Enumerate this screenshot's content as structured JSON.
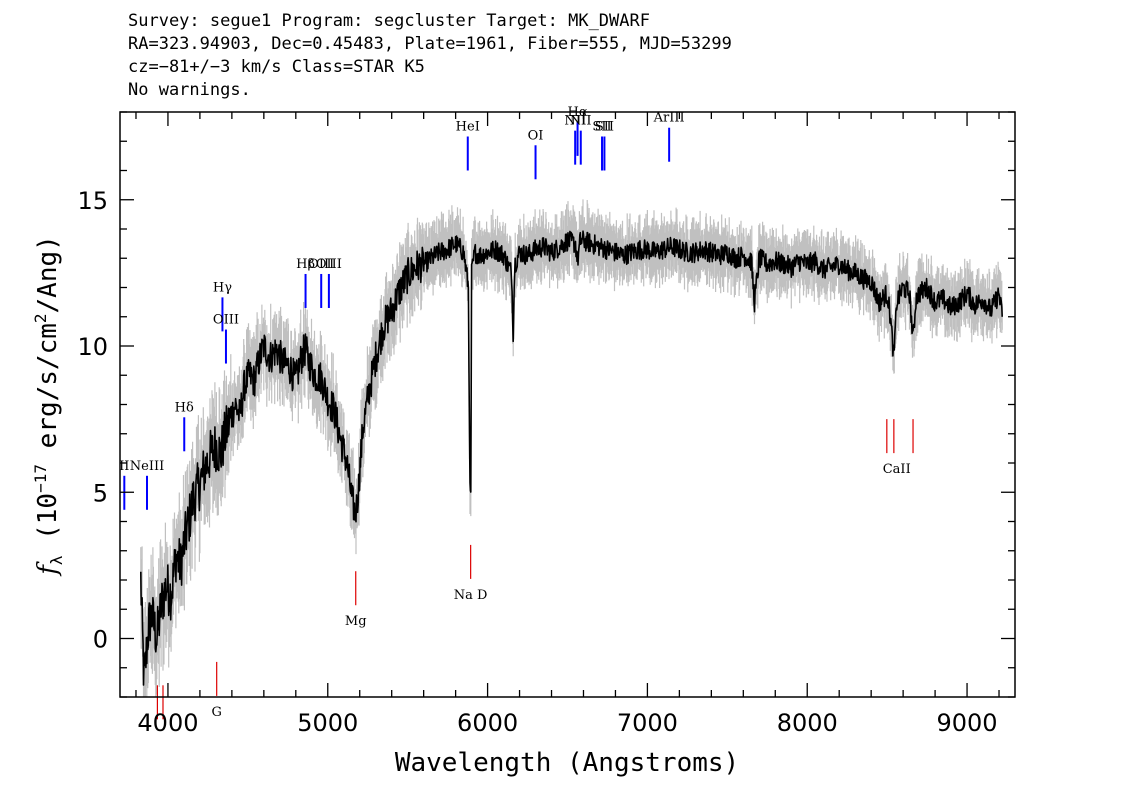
{
  "header": {
    "line1": "Survey: segue1 Program: segcluster Target: MK_DWARF",
    "line2": "RA=323.94903, Dec=0.45483, Plate=1961, Fiber=555, MJD=53299",
    "line3": "cz=−81+/−3 km/s Class=STAR K5",
    "line4": "No warnings."
  },
  "chart_data": {
    "type": "line",
    "xlabel": "Wavelength (Angstroms)",
    "ylabel": "f_λ (10^-17 erg/s/cm^2/Ang)",
    "xlim": [
      3700,
      9300
    ],
    "ylim": [
      -2,
      18
    ],
    "x_ticks": [
      4000,
      5000,
      6000,
      7000,
      8000,
      9000
    ],
    "y_ticks": [
      0,
      5,
      10,
      15
    ],
    "grid": false,
    "colors": {
      "flux": "#000000",
      "noise": "#c0c0c0",
      "emission": "#0000ff",
      "absorption": "#dd0000"
    },
    "series": [
      {
        "name": "flux",
        "x": [
          3830,
          3850,
          3880,
          3900,
          3930,
          3960,
          3990,
          4020,
          4050,
          4080,
          4100,
          4130,
          4160,
          4200,
          4230,
          4260,
          4300,
          4330,
          4360,
          4390,
          4420,
          4450,
          4480,
          4510,
          4540,
          4570,
          4600,
          4640,
          4680,
          4720,
          4760,
          4800,
          4840,
          4860,
          4880,
          4920,
          4960,
          5000,
          5040,
          5080,
          5120,
          5150,
          5170,
          5180,
          5190,
          5220,
          5260,
          5300,
          5350,
          5400,
          5450,
          5500,
          5550,
          5600,
          5650,
          5700,
          5750,
          5800,
          5850,
          5880,
          5890,
          5895,
          5900,
          5920,
          5950,
          6000,
          6050,
          6100,
          6150,
          6160,
          6170,
          6200,
          6250,
          6300,
          6350,
          6400,
          6450,
          6500,
          6550,
          6563,
          6580,
          6600,
          6650,
          6700,
          6750,
          6800,
          6850,
          6900,
          6950,
          7000,
          7050,
          7100,
          7150,
          7200,
          7250,
          7300,
          7350,
          7400,
          7450,
          7500,
          7550,
          7600,
          7650,
          7670,
          7700,
          7750,
          7800,
          7850,
          7900,
          7950,
          8000,
          8050,
          8100,
          8150,
          8200,
          8250,
          8300,
          8350,
          8400,
          8450,
          8500,
          8520,
          8542,
          8560,
          8600,
          8640,
          8662,
          8680,
          8700,
          8750,
          8800,
          8850,
          8900,
          8950,
          9000,
          9050,
          9100,
          9150,
          9200,
          9220
        ],
        "values": [
          2.0,
          -1.5,
          0.5,
          0.8,
          0.0,
          1.2,
          1.8,
          1.5,
          2.8,
          2.5,
          3.2,
          4.0,
          4.8,
          5.3,
          5.8,
          6.2,
          6.6,
          6.3,
          7.0,
          7.5,
          8.0,
          7.6,
          8.7,
          9.0,
          8.8,
          9.5,
          10.0,
          9.6,
          9.9,
          9.4,
          9.3,
          8.8,
          9.7,
          9.9,
          9.5,
          9.0,
          8.9,
          8.2,
          7.8,
          6.8,
          6.0,
          4.8,
          4.3,
          4.5,
          5.0,
          7.2,
          8.5,
          9.6,
          10.7,
          11.2,
          11.9,
          12.4,
          12.7,
          12.8,
          13.0,
          13.2,
          13.3,
          13.5,
          13.2,
          12.0,
          5.0,
          4.8,
          12.5,
          13.2,
          13.1,
          13.2,
          13.3,
          13.1,
          12.5,
          10.5,
          12.8,
          13.2,
          13.1,
          13.3,
          13.4,
          13.2,
          13.4,
          13.6,
          13.5,
          12.9,
          13.6,
          13.6,
          13.5,
          13.4,
          13.3,
          13.2,
          13.1,
          13.2,
          13.3,
          13.3,
          13.2,
          13.3,
          13.4,
          13.3,
          13.2,
          13.2,
          13.3,
          13.2,
          13.1,
          13.2,
          13.0,
          13.1,
          12.9,
          11.5,
          13.0,
          12.8,
          12.9,
          12.8,
          12.7,
          12.9,
          12.8,
          12.9,
          12.6,
          12.7,
          12.8,
          12.6,
          12.5,
          12.3,
          12.2,
          11.5,
          11.8,
          11.0,
          9.6,
          11.5,
          12.0,
          11.8,
          10.2,
          11.6,
          11.8,
          12.0,
          11.5,
          11.6,
          11.3,
          11.5,
          11.8,
          11.4,
          11.6,
          11.2,
          11.8,
          11.0
        ]
      }
    ],
    "emission_lines": [
      {
        "label": "OII",
        "x": 3727,
        "y": 4.4,
        "label_shown": "II"
      },
      {
        "label": "NeIII",
        "x": 3869,
        "y": 4.4
      },
      {
        "label": "Hδ",
        "x": 4102,
        "y": 6.4
      },
      {
        "label": "Hγ",
        "x": 4341,
        "y": 10.5
      },
      {
        "label": "OIII",
        "x": 4363,
        "y": 9.4
      },
      {
        "label": "Hβ",
        "x": 4861,
        "y": 11.3
      },
      {
        "label": "OIII",
        "x": 4959,
        "y": 11.3
      },
      {
        "label": "OIII",
        "x": 5007,
        "y": 11.3
      },
      {
        "label": "HeI",
        "x": 5876,
        "y": 16.0
      },
      {
        "label": "OI",
        "x": 6300,
        "y": 15.7
      },
      {
        "label": "NII",
        "x": 6548,
        "y": 16.2
      },
      {
        "label": "Hα",
        "x": 6563,
        "y": 16.5
      },
      {
        "label": "NII",
        "x": 6583,
        "y": 16.2
      },
      {
        "label": "SII",
        "x": 6716,
        "y": 16.0
      },
      {
        "label": "SII",
        "x": 6731,
        "y": 16.0
      },
      {
        "label": "ArIII",
        "x": 7136,
        "y": 16.3
      }
    ],
    "absorption_lines": [
      {
        "label": "",
        "x": 3934,
        "y": -1.6
      },
      {
        "label": "",
        "x": 3969,
        "y": -1.6
      },
      {
        "label": "G",
        "x": 4305,
        "y": -0.8
      },
      {
        "label": "Mg",
        "x": 5175,
        "y": 2.3
      },
      {
        "label": "Na D",
        "x": 5894,
        "y": 3.2
      },
      {
        "label": "CaII",
        "x": 8498,
        "y": 7.5
      },
      {
        "label": "CaII",
        "x": 8542,
        "y": 7.5
      },
      {
        "label": "CaII",
        "x": 8662,
        "y": 7.5
      }
    ]
  }
}
